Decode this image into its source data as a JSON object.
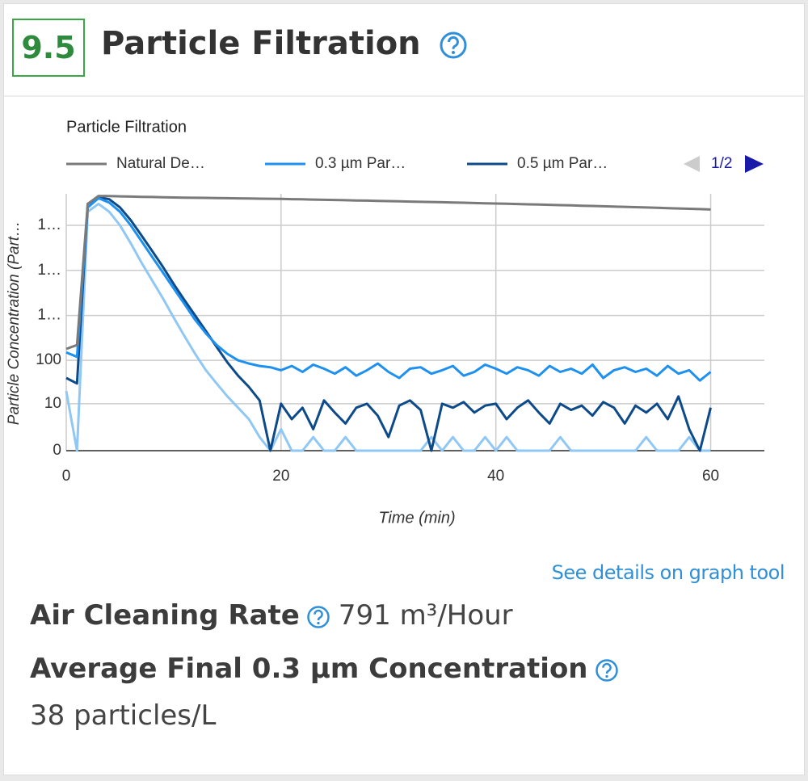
{
  "header": {
    "score": "9.5",
    "title": "Particle Filtration"
  },
  "chart_data": {
    "type": "line",
    "title": "Particle Filtration",
    "xlabel": "Time (min)",
    "ylabel": "Particle Concentration (Part…",
    "scale": "symlog",
    "grid": true,
    "legend": "top",
    "legend_page": "1/2",
    "xlim": [
      0,
      65
    ],
    "xticks": [
      0,
      20,
      40,
      60
    ],
    "ylim": [
      0,
      500000
    ],
    "yticks": [
      0,
      10,
      100,
      {
        "value": 1000,
        "label": "1…"
      },
      {
        "value": 10000,
        "label": "1…"
      },
      {
        "value": 100000,
        "label": "1…"
      }
    ],
    "x": [
      0,
      1,
      2,
      3,
      4,
      5,
      6,
      7,
      8,
      9,
      10,
      11,
      12,
      13,
      14,
      15,
      16,
      17,
      18,
      19,
      20,
      21,
      22,
      23,
      24,
      25,
      26,
      27,
      28,
      29,
      30,
      31,
      32,
      33,
      34,
      35,
      36,
      37,
      38,
      39,
      40,
      41,
      42,
      43,
      44,
      45,
      46,
      47,
      48,
      49,
      50,
      51,
      52,
      53,
      54,
      55,
      56,
      57,
      58,
      59,
      60
    ],
    "series": [
      {
        "name": "Natural De…",
        "color": "#7a7a7a",
        "values": [
          180,
          220,
          300000,
          450000,
          445000,
          440000,
          435000,
          430000,
          425000,
          420000,
          415000,
          412000,
          409000,
          406000,
          403000,
          400000,
          397000,
          394000,
          391000,
          388000,
          385000,
          381000,
          377000,
          373000,
          369000,
          365000,
          361000,
          357000,
          353000,
          349000,
          345000,
          341000,
          337000,
          333000,
          329000,
          325000,
          321000,
          317000,
          313000,
          309000,
          305000,
          301000,
          297000,
          293000,
          289000,
          285000,
          281000,
          277000,
          273000,
          269000,
          265000,
          261000,
          257000,
          253000,
          249000,
          245000,
          241000,
          237000,
          233000,
          229000,
          225000
        ]
      },
      {
        "name": "0.3 µm Par…",
        "color": "#1e90f0",
        "values": [
          150,
          120,
          250000,
          400000,
          320000,
          200000,
          100000,
          45000,
          20000,
          9000,
          4000,
          1800,
          800,
          400,
          220,
          140,
          100,
          85,
          75,
          70,
          60,
          75,
          55,
          80,
          65,
          50,
          70,
          45,
          60,
          85,
          55,
          40,
          65,
          70,
          50,
          60,
          75,
          45,
          55,
          80,
          65,
          50,
          70,
          60,
          45,
          75,
          55,
          65,
          50,
          80,
          40,
          60,
          70,
          55,
          65,
          45,
          75,
          50,
          60,
          35,
          55
        ]
      },
      {
        "name": "0.5 µm Par…",
        "color": "#0d4a8a",
        "values": [
          40,
          30,
          300000,
          420000,
          380000,
          250000,
          130000,
          60000,
          27000,
          12000,
          5000,
          2200,
          1000,
          450,
          200,
          90,
          45,
          25,
          12,
          0,
          10,
          4,
          8,
          2,
          12,
          6,
          3,
          8,
          10,
          5,
          1,
          9,
          12,
          7,
          0,
          10,
          8,
          11,
          6,
          9,
          10,
          4,
          8,
          12,
          6,
          3,
          10,
          7,
          9,
          5,
          11,
          8,
          3,
          9,
          6,
          10,
          4,
          15,
          2,
          0,
          8
        ]
      },
      {
        "color": "#90c8f5",
        "values": [
          20,
          0,
          200000,
          300000,
          200000,
          100000,
          40000,
          15000,
          6000,
          2400,
          900,
          350,
          140,
          60,
          30,
          15,
          8,
          4,
          1,
          0,
          2,
          0,
          0,
          1,
          0,
          0,
          1,
          0,
          0,
          0,
          0,
          0,
          0,
          0,
          1,
          0,
          1,
          0,
          0,
          1,
          0,
          1,
          0,
          0,
          0,
          0,
          1,
          0,
          0,
          0,
          0,
          0,
          0,
          0,
          1,
          0,
          0,
          0,
          1,
          0,
          0
        ]
      }
    ]
  },
  "link": "See details on graph tool",
  "metrics": [
    {
      "label": "Air Cleaning Rate",
      "value": "791 m³/Hour"
    },
    {
      "label": "Average Final 0.3 µm Concentration",
      "value": "38 particles/L"
    }
  ]
}
